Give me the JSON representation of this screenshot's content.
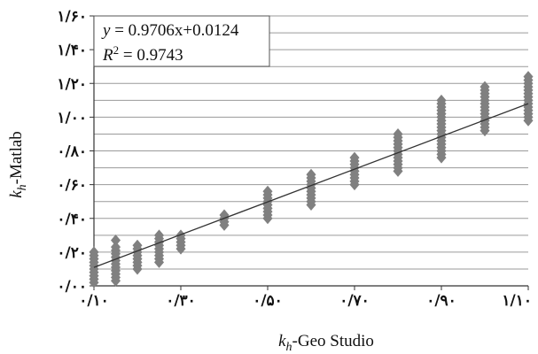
{
  "chart_data": {
    "type": "scatter",
    "xlabel": {
      "symbol": "k",
      "sub": "h",
      "text": "-Geo Studio"
    },
    "ylabel": {
      "symbol": "k",
      "sub": "h",
      "text": "-Matlab"
    },
    "xlim": [
      0.1,
      1.1
    ],
    "ylim": [
      0.0,
      1.6
    ],
    "x_ticks": [
      0.1,
      0.3,
      0.5,
      0.7,
      0.9,
      1.1
    ],
    "x_tick_labels": [
      "۰/۱۰",
      "۰/۳۰",
      "۰/۵۰",
      "۰/۷۰",
      "۰/۹۰",
      "۱/۱۰"
    ],
    "y_ticks": [
      0.0,
      0.2,
      0.4,
      0.6,
      0.8,
      1.0,
      1.2,
      1.4,
      1.6
    ],
    "y_tick_labels": [
      "۰/۰۰",
      "۰/۲۰",
      "۰/۴۰",
      "۰/۶۰",
      "۰/۸۰",
      "۱/۰۰",
      "۱/۲۰",
      "۱/۴۰",
      "۱/۶۰"
    ],
    "grid": {
      "horizontal": true,
      "vertical": false,
      "minor_y_step": 0.1
    },
    "legend_box": {
      "line1": {
        "lhs": "y",
        "rhs": " = 0.9706x+0.0124"
      },
      "line2": {
        "lhs": "R",
        "sup": "2",
        "rhs": " = 0.9743"
      }
    },
    "trendline": {
      "slope": 0.9706,
      "intercept": 0.0124,
      "x_range": [
        0.1,
        1.1
      ]
    },
    "marker": {
      "shape": "diamond",
      "color": "#808080"
    },
    "series": [
      {
        "x": 0.1,
        "y": [
          0.02,
          0.04,
          0.06,
          0.08,
          0.1,
          0.12,
          0.14,
          0.16,
          0.18,
          0.2
        ]
      },
      {
        "x": 0.15,
        "y": [
          0.03,
          0.05,
          0.07,
          0.09,
          0.11,
          0.13,
          0.15,
          0.17,
          0.19,
          0.21,
          0.23,
          0.27
        ]
      },
      {
        "x": 0.2,
        "y": [
          0.1,
          0.12,
          0.14,
          0.16,
          0.18,
          0.2,
          0.22,
          0.24
        ]
      },
      {
        "x": 0.25,
        "y": [
          0.14,
          0.16,
          0.18,
          0.2,
          0.22,
          0.24,
          0.26,
          0.28,
          0.3
        ]
      },
      {
        "x": 0.3,
        "y": [
          0.22,
          0.24,
          0.26,
          0.28,
          0.3
        ]
      },
      {
        "x": 0.4,
        "y": [
          0.36,
          0.38,
          0.4,
          0.42
        ]
      },
      {
        "x": 0.5,
        "y": [
          0.4,
          0.42,
          0.44,
          0.46,
          0.48,
          0.5,
          0.52,
          0.54,
          0.56
        ]
      },
      {
        "x": 0.6,
        "y": [
          0.48,
          0.5,
          0.52,
          0.54,
          0.56,
          0.58,
          0.6,
          0.62,
          0.64,
          0.66
        ]
      },
      {
        "x": 0.7,
        "y": [
          0.6,
          0.62,
          0.64,
          0.66,
          0.68,
          0.7,
          0.72,
          0.74,
          0.76
        ]
      },
      {
        "x": 0.8,
        "y": [
          0.68,
          0.7,
          0.72,
          0.74,
          0.76,
          0.78,
          0.8,
          0.82,
          0.84,
          0.86,
          0.88,
          0.9
        ]
      },
      {
        "x": 0.9,
        "y": [
          0.76,
          0.78,
          0.8,
          0.82,
          0.84,
          0.86,
          0.88,
          0.9,
          0.92,
          0.94,
          0.96,
          0.98,
          1.0,
          1.02,
          1.04,
          1.06,
          1.08,
          1.1
        ]
      },
      {
        "x": 1.0,
        "y": [
          0.92,
          0.94,
          0.96,
          0.98,
          1.0,
          1.02,
          1.04,
          1.06,
          1.08,
          1.1,
          1.12,
          1.14,
          1.16,
          1.18
        ]
      },
      {
        "x": 1.1,
        "y": [
          0.98,
          1.0,
          1.02,
          1.04,
          1.06,
          1.08,
          1.1,
          1.12,
          1.14,
          1.16,
          1.18,
          1.2,
          1.22,
          1.24
        ]
      }
    ]
  }
}
